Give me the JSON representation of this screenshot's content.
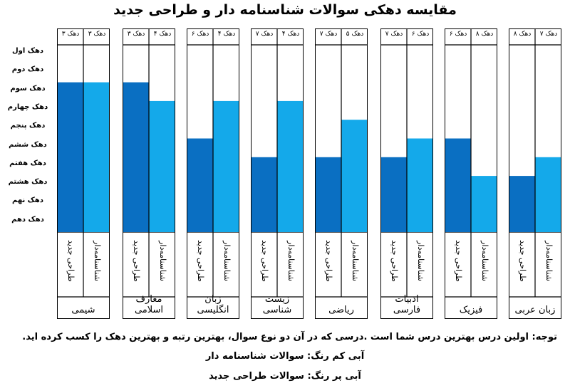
{
  "chart_data": {
    "type": "bar",
    "title": "مقایسه دهکی سوالات شناسنامه دار و طراحی جدید",
    "y_tick_labels": [
      "دهک اول",
      "دهک دوم",
      "دهک سوم",
      "دهک چهارم",
      "دهک پنجم",
      "دهک ششم",
      "دهک هفتم",
      "دهک هشتم",
      "دهک نهم",
      "دهک دهم"
    ],
    "ylim": [
      1,
      10
    ],
    "series": [
      {
        "name": "طراحی جدید",
        "color": "#0a6fc2"
      },
      {
        "name": "شناسنامه‌دار",
        "color": "#14a9ea"
      }
    ],
    "groups": [
      {
        "subject": "شیمی",
        "new_label": "دهک ۳",
        "shen_label": "دهک ۳",
        "new": 3,
        "shen": 3
      },
      {
        "subject": "معارف اسلامی",
        "new_label": "دهک ۳",
        "shen_label": "دهک ۴",
        "new": 3,
        "shen": 4
      },
      {
        "subject": "زبان انگلیسی",
        "new_label": "دهک ۶",
        "shen_label": "دهک ۴",
        "new": 6,
        "shen": 4
      },
      {
        "subject": "زیست شناسی",
        "new_label": "دهک ۷",
        "shen_label": "دهک ۴",
        "new": 7,
        "shen": 4
      },
      {
        "subject": "ریاضی",
        "new_label": "دهک ۷",
        "shen_label": "دهک ۵",
        "new": 7,
        "shen": 5
      },
      {
        "subject": "ادبیات فارسی",
        "new_label": "دهک ۷",
        "shen_label": "دهک ۶",
        "new": 7,
        "shen": 6
      },
      {
        "subject": "فیزیک",
        "new_label": "دهک ۶",
        "shen_label": "دهک ۸",
        "new": 6,
        "shen": 8
      },
      {
        "subject": "زبان عربی",
        "new_label": "دهک ۸",
        "shen_label": "دهک ۷",
        "new": 8,
        "shen": 7
      }
    ]
  },
  "notes": {
    "line1": "توجه: اولین درس بهترین درس شما است .درسی که در آن دو نوع سوال، بهترین رتبه و بهترین دهک را کسب کرده اید.",
    "line2": "آبی کم رنگ: سوالات شناسنامه دار",
    "line3": "آبی پر رنگ: سوالات طراحی جدید"
  }
}
